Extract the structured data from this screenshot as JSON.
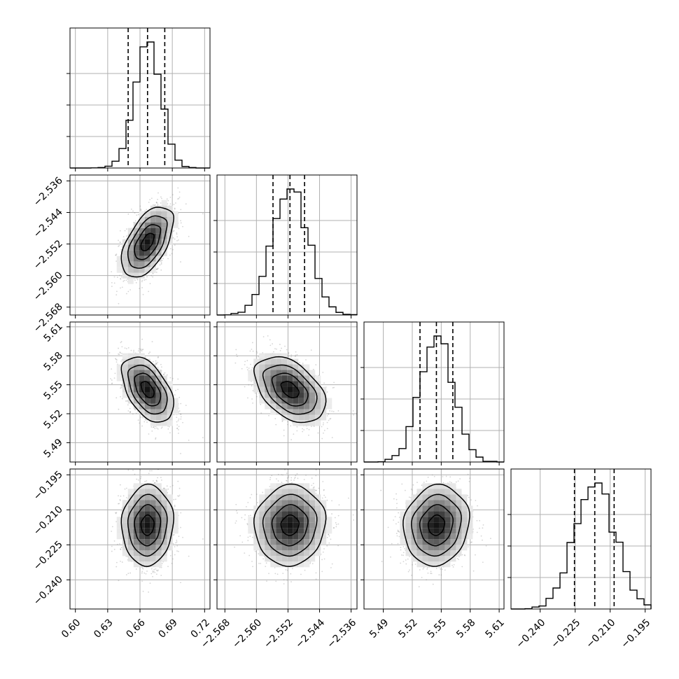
{
  "chart_data": {
    "type": "corner",
    "parameters": [
      {
        "center": 0.667,
        "sigma": 0.012,
        "range": [
          0.595,
          0.725
        ],
        "ticks": [
          "0.60",
          "0.63",
          "0.66",
          "0.69",
          "0.72"
        ],
        "tick_values": [
          0.6,
          0.63,
          0.66,
          0.69,
          0.72
        ],
        "quantiles": [
          0.649,
          0.667,
          0.683
        ]
      },
      {
        "center": -2.5515,
        "sigma": 0.0045,
        "range": [
          -2.57,
          -2.5345
        ],
        "ticks": [
          "−2.568",
          "−2.560",
          "−2.552",
          "−2.544",
          "−2.536"
        ],
        "tick_values": [
          -2.568,
          -2.56,
          -2.552,
          -2.544,
          -2.536
        ],
        "quantiles": [
          -2.5558,
          -2.5515,
          -2.5478
        ]
      },
      {
        "center": 5.545,
        "sigma": 0.017,
        "range": [
          5.47,
          5.615
        ],
        "ticks": [
          "5.49",
          "5.52",
          "5.55",
          "5.58",
          "5.61"
        ],
        "tick_values": [
          5.49,
          5.52,
          5.55,
          5.58,
          5.61
        ],
        "quantiles": [
          5.528,
          5.545,
          5.562
        ]
      },
      {
        "center": -0.2166,
        "sigma": 0.0085,
        "range": [
          -0.2525,
          -0.1925
        ],
        "ticks": [
          "−0.195",
          "−0.210",
          "−0.225",
          "−0.240"
        ],
        "tick_values": [
          -0.195,
          -0.21,
          -0.225,
          -0.24
        ],
        "quantiles": [
          -0.2253,
          -0.2166,
          -0.2083
        ]
      }
    ],
    "x_tick_order_last": [
      "−0.240",
      "−0.225",
      "−0.210",
      "−0.195"
    ],
    "correlations": [
      [
        1,
        0.55,
        -0.5,
        0.05
      ],
      [
        0.55,
        1,
        -0.45,
        0.05
      ],
      [
        -0.5,
        -0.45,
        1,
        0.1
      ],
      [
        0.05,
        0.05,
        0.1,
        1
      ]
    ],
    "grid": true,
    "quantile_style": "dashed",
    "contour_levels": 4
  }
}
